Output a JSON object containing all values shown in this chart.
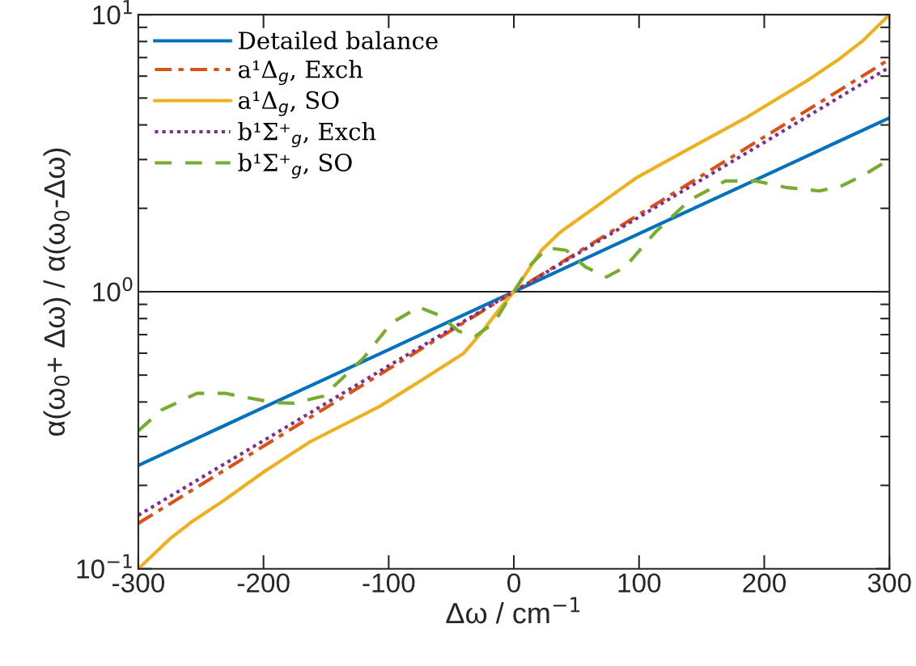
{
  "chart_data": {
    "type": "line",
    "xlabel": "Δω / cm$^{−1}$",
    "ylabel": "α(ω$_{0}$+ Δω) / α(ω$_{0}$-Δω)",
    "log": "y",
    "xlim": [
      -300,
      300
    ],
    "xticks": [
      -300,
      -200,
      -100,
      0,
      100,
      200,
      300
    ],
    "ylim": [
      0.1,
      10
    ],
    "yticks": [
      {
        "value": 0.1,
        "label": "10$^{−1}$"
      },
      {
        "value": 1,
        "label": "10$^{0}$"
      },
      {
        "value": 10,
        "label": "10$^{1}$"
      }
    ],
    "grid": false,
    "legend": "top left",
    "ref_lines": [
      {
        "axis": "y",
        "value": 1,
        "color": "#000000",
        "line_style": "solid"
      }
    ],
    "series": [
      {
        "name": "Detailed balance",
        "color": "#0072bd",
        "line_style": "solid",
        "x": [
          -300,
          -200,
          -100,
          0,
          100,
          200,
          300
        ],
        "values": [
          0.236,
          0.382,
          0.618,
          1,
          1.62,
          2.62,
          4.24
        ]
      },
      {
        "name": "a¹Δ$_{g}$, Exch",
        "color": "#d95319",
        "line_style": "dashdot",
        "x": [
          -300,
          -200,
          -100,
          0,
          100,
          200,
          300
        ],
        "values": [
          0.146,
          0.277,
          0.526,
          1,
          1.9,
          3.62,
          6.9
        ]
      },
      {
        "name": "a¹Δ$_{g}$, SO",
        "color": "#edb120",
        "line_style": "solid",
        "x": [
          -300,
          -275,
          -258,
          -232,
          -199,
          -163,
          -107,
          -70,
          -40,
          -25,
          -12,
          0,
          22,
          37,
          59,
          98,
          141,
          184,
          234,
          260,
          279,
          300
        ],
        "values": [
          0.1,
          0.128,
          0.147,
          0.176,
          0.225,
          0.287,
          0.386,
          0.491,
          0.6,
          0.72,
          0.86,
          1,
          1.41,
          1.64,
          1.93,
          2.58,
          3.3,
          4.21,
          5.77,
          6.92,
          8.07,
          10
        ]
      },
      {
        "name": "b¹Σ⁺$_{g}$, Exch",
        "color": "#7e2f8e",
        "line_style": "dotted",
        "x": [
          -300,
          -200,
          -100,
          0,
          100,
          200,
          300
        ],
        "values": [
          0.156,
          0.29,
          0.54,
          1,
          1.86,
          3.46,
          6.46
        ]
      },
      {
        "name": "b¹Σ⁺$_{g}$, SO",
        "color": "#77ac30",
        "line_style": "dashed",
        "x": [
          -300,
          -281,
          -253,
          -231,
          -192,
          -176,
          -152,
          -120,
          -98,
          -76,
          -59,
          -44,
          -31,
          -16,
          -3,
          0,
          14,
          27,
          42,
          57,
          74,
          89,
          113,
          141,
          169,
          193,
          217,
          244,
          262,
          279,
          300
        ],
        "values": [
          0.315,
          0.375,
          0.43,
          0.43,
          0.398,
          0.396,
          0.42,
          0.577,
          0.77,
          0.88,
          0.82,
          0.72,
          0.69,
          0.77,
          0.96,
          1.0,
          1.26,
          1.44,
          1.41,
          1.23,
          1.13,
          1.23,
          1.64,
          2.15,
          2.51,
          2.51,
          2.38,
          2.31,
          2.41,
          2.63,
          3.0
        ]
      }
    ]
  }
}
